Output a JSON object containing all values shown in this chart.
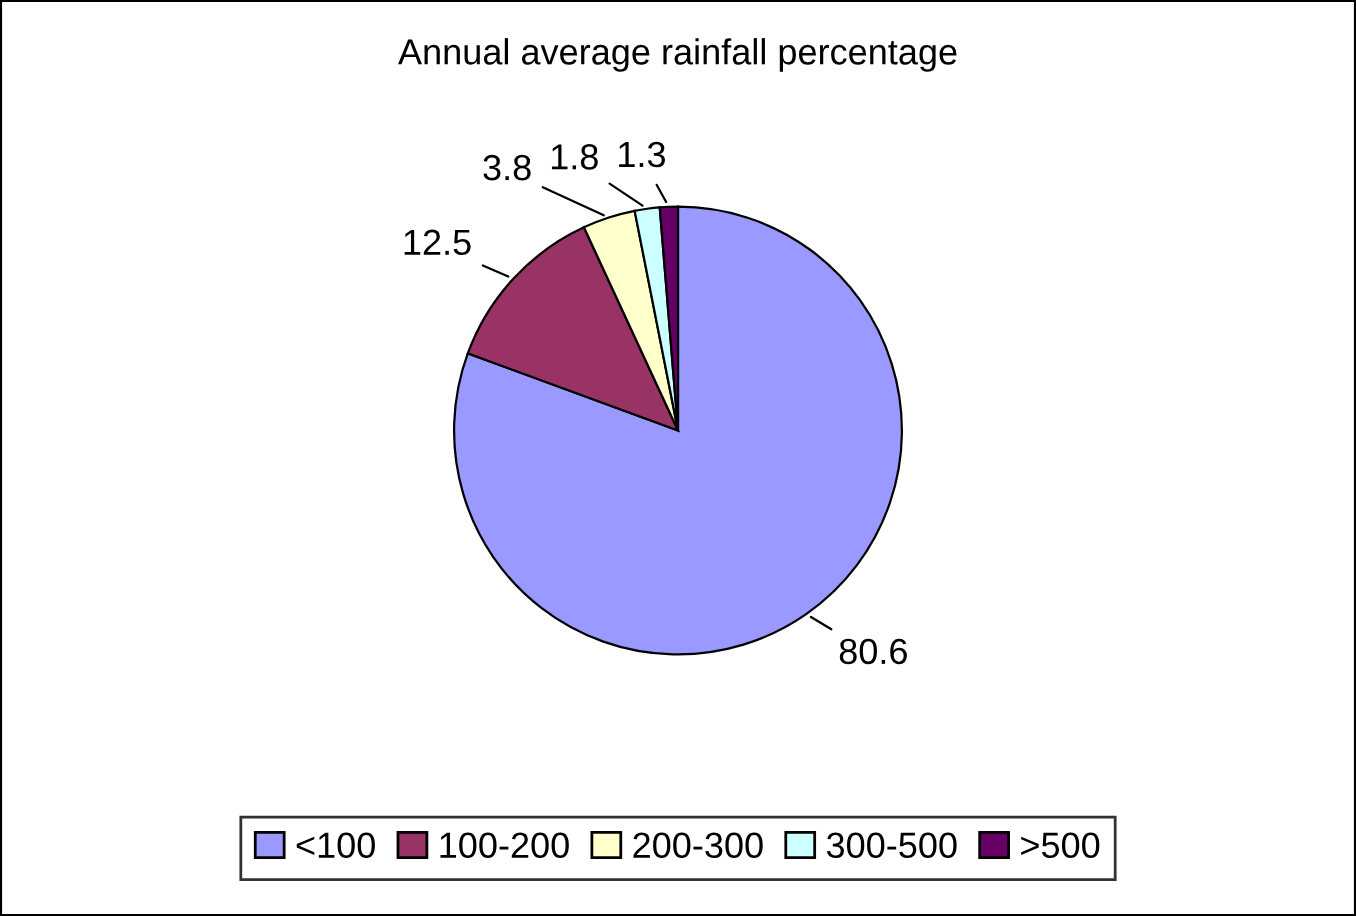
{
  "chart_data": {
    "type": "pie",
    "title": "Annual average rainfall percentage",
    "categories": [
      "<100",
      "100-200",
      "200-300",
      "300-500",
      ">500"
    ],
    "values": [
      80.6,
      12.5,
      3.8,
      1.8,
      1.3
    ],
    "colors": [
      "#9999ff",
      "#993366",
      "#ffffcc",
      "#ccffff",
      "#660066"
    ],
    "data_labels": true,
    "legend": "bottom"
  }
}
